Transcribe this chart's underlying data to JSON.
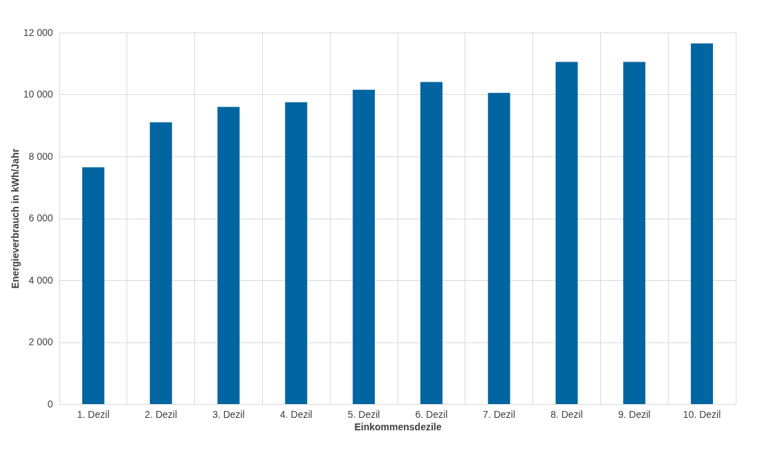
{
  "chart_data": {
    "type": "bar",
    "xlabel": "Einkommensdezile",
    "ylabel": "Energieverbrauch in kWh/Jahr",
    "categories": [
      "1. Dezil",
      "2. Dezil",
      "3. Dezil",
      "4. Dezil",
      "5. Dezil",
      "6. Dezil",
      "7. Dezil",
      "8. Dezil",
      "9. Dezil",
      "10. Dezil"
    ],
    "values": [
      7650,
      9100,
      9600,
      9750,
      10150,
      10400,
      10050,
      11050,
      11050,
      11650
    ],
    "color": "#0065a0",
    "ylim": [
      0,
      12000
    ],
    "yticks": [
      0,
      {
        "value": 2000,
        "label": "2 000"
      },
      {
        "value": 4000,
        "label": "4 000"
      },
      {
        "value": 6000,
        "label": "6 000"
      },
      {
        "value": 8000,
        "label": "8 000"
      },
      {
        "value": 10000,
        "label": "10 000"
      },
      {
        "value": 12000,
        "label": "12 000"
      }
    ],
    "grid": true
  }
}
